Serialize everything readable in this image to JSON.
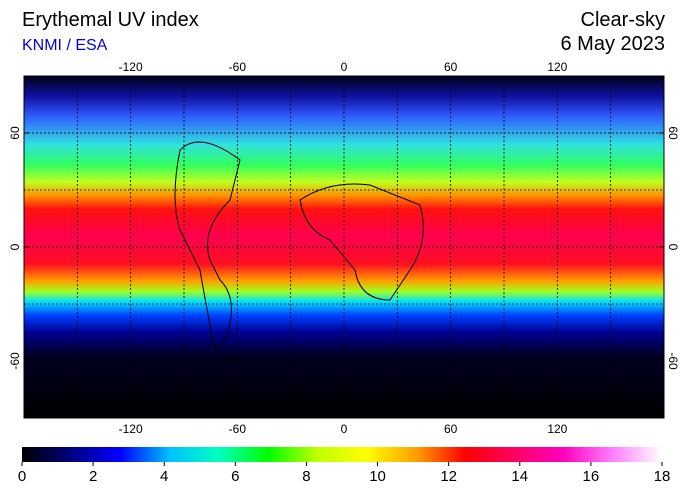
{
  "header": {
    "title": "Erythemal UV index",
    "source": "KNMI / ESA",
    "condition": "Clear-sky",
    "date": "6 May 2023"
  },
  "map": {
    "lon_range": [
      -180,
      180
    ],
    "lat_range": [
      -90,
      90
    ],
    "lon_ticks": [
      -120,
      -60,
      0,
      60,
      120
    ],
    "lat_ticks": [
      60,
      0,
      -60
    ],
    "grid_step": 30
  },
  "colorbar": {
    "range": [
      0,
      18
    ],
    "ticks": [
      0,
      2,
      4,
      6,
      8,
      10,
      12,
      14,
      16,
      18
    ],
    "colors": [
      "#000000",
      "#000080",
      "#0000ff",
      "#00c0ff",
      "#00ffc0",
      "#00ff00",
      "#c0ff00",
      "#ffff00",
      "#ffa000",
      "#ff0000",
      "#ff0060",
      "#ff00c0",
      "#ff80ff",
      "#ffffff"
    ]
  }
}
